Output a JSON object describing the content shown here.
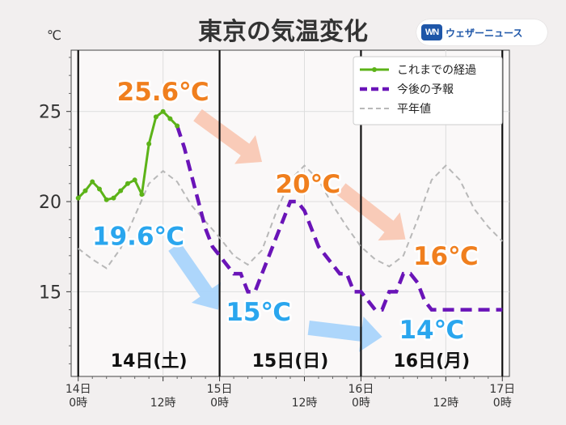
{
  "title": "東京の気温変化",
  "unit_label": "℃",
  "logo": {
    "mark": "WN",
    "text": "ウェザーニュース",
    "color": "#1e56a8"
  },
  "chart_data": {
    "type": "line",
    "y_ticks": [
      15,
      20,
      25
    ],
    "ylim": [
      10.3,
      28.4
    ],
    "xlim": [
      -1,
      61
    ],
    "x_unit": "hours from 14日 0時",
    "x_ticks": [
      {
        "x": 0,
        "lines": [
          "14日",
          "0時"
        ]
      },
      {
        "x": 12,
        "lines": [
          "12時"
        ]
      },
      {
        "x": 20,
        "lines": [
          "15日",
          "0時"
        ]
      },
      {
        "x": 32,
        "lines": [
          "12時"
        ]
      },
      {
        "x": 40,
        "lines": [
          "16日",
          "0時"
        ]
      },
      {
        "x": 52,
        "lines": [
          "12時"
        ]
      },
      {
        "x": 60,
        "lines": [
          "17日",
          "0時"
        ]
      }
    ],
    "day_dividers": [
      0,
      20,
      40,
      60
    ],
    "day_labels": [
      {
        "text": "14日(土)",
        "x": 10
      },
      {
        "text": "15日(日)",
        "x": 30
      },
      {
        "text": "16日(月)",
        "x": 50
      }
    ],
    "legend": {
      "position": "top-right",
      "items": [
        {
          "label": "これまでの経過",
          "style": "observed"
        },
        {
          "label": "今後の予報",
          "style": "forecast"
        },
        {
          "label": "平年値",
          "style": "normal"
        }
      ]
    },
    "series": [
      {
        "name": "これまでの経過",
        "color": "#5cb318",
        "x": [
          0,
          1,
          2,
          3,
          4,
          5,
          6,
          7,
          8,
          9,
          10,
          11,
          12,
          13,
          14
        ],
        "values": [
          20.2,
          20.6,
          21.1,
          20.7,
          20.1,
          20.2,
          20.6,
          21.0,
          21.2,
          20.4,
          23.2,
          24.7,
          25.0,
          24.6,
          24.2
        ]
      },
      {
        "name": "今後の予報",
        "color": "#6a14b8",
        "x": [
          14,
          15,
          16,
          17,
          18,
          19,
          20,
          21,
          22,
          23,
          24,
          25,
          26,
          27,
          28,
          29,
          30,
          31,
          32,
          33,
          34,
          35,
          36,
          37,
          38,
          39,
          40,
          41,
          42,
          43,
          44,
          45,
          46,
          47,
          48,
          49,
          50,
          51,
          52,
          53,
          54,
          55,
          56,
          57,
          58,
          59,
          60
        ],
        "values": [
          24.2,
          23,
          21.5,
          20,
          18.5,
          17.5,
          17,
          16.5,
          16,
          16,
          15,
          15,
          16,
          17,
          18,
          19,
          20,
          20,
          19.5,
          18.5,
          17.5,
          17,
          16.5,
          16,
          16,
          15,
          15,
          14.5,
          14,
          14,
          15,
          15,
          16,
          16,
          15.5,
          14.5,
          14,
          14,
          14,
          14,
          14,
          14,
          14,
          14,
          14,
          14,
          14
        ]
      },
      {
        "name": "平年値",
        "color": "#b8b8b8",
        "x": [
          0,
          2,
          4,
          6,
          8,
          10,
          12,
          14,
          16,
          18,
          20,
          22,
          24,
          26,
          28,
          30,
          32,
          34,
          36,
          38,
          40,
          42,
          44,
          46,
          48,
          50,
          52,
          54,
          56,
          58,
          60
        ],
        "values": [
          17.4,
          16.8,
          16.3,
          17.4,
          19.2,
          21.0,
          21.7,
          21.1,
          19.8,
          18.9,
          18.0,
          17.0,
          16.5,
          17.3,
          19.4,
          21.2,
          22.0,
          21.2,
          19.8,
          18.6,
          17.5,
          16.8,
          16.4,
          17.0,
          19.0,
          21.2,
          22.0,
          21.2,
          19.6,
          18.6,
          17.8
        ]
      }
    ],
    "annotations": [
      {
        "text": "25.6℃",
        "x": 12.0,
        "y": 26.1,
        "color": "#f07f1e"
      },
      {
        "text": "19.6℃",
        "x": 8.5,
        "y": 18.1,
        "color": "#2aa6ee"
      },
      {
        "text": "20℃",
        "x": 32.5,
        "y": 21.0,
        "color": "#f07f1e"
      },
      {
        "text": "15℃",
        "x": 25.5,
        "y": 13.9,
        "color": "#2aa6ee"
      },
      {
        "text": "16℃",
        "x": 52.0,
        "y": 17.0,
        "color": "#f07f1e"
      },
      {
        "text": "14℃",
        "x": 50.0,
        "y": 12.9,
        "color": "#2aa6ee"
      }
    ],
    "arrows": [
      {
        "from": [
          16.9,
          24.8
        ],
        "to": [
          26.0,
          22.2
        ],
        "color": "#f9c8b4"
      },
      {
        "from": [
          37.2,
          20.7
        ],
        "to": [
          46.3,
          17.9
        ],
        "color": "#f9c8b4"
      },
      {
        "from": [
          13.6,
          17.5
        ],
        "to": [
          19.8,
          14.0
        ],
        "color": "#a9d4fb"
      },
      {
        "from": [
          32.6,
          13.0
        ],
        "to": [
          43.0,
          12.5
        ],
        "color": "#a9d4fb"
      }
    ],
    "grid": true
  }
}
